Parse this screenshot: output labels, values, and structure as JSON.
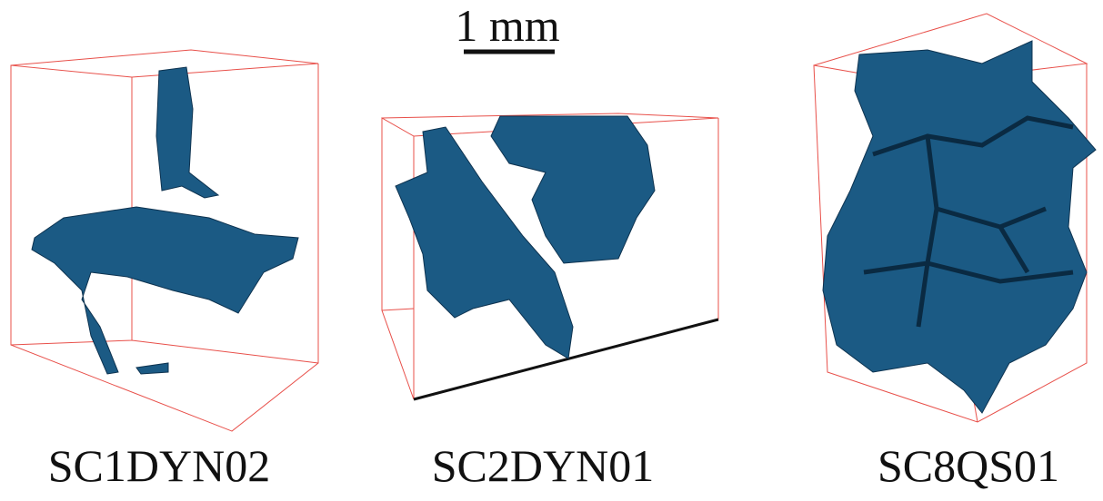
{
  "scale_bar": {
    "label": "1 mm"
  },
  "panels": [
    {
      "label": "SC1DYN02"
    },
    {
      "label": "SC2DYN01"
    },
    {
      "label": "SC8QS01"
    }
  ]
}
